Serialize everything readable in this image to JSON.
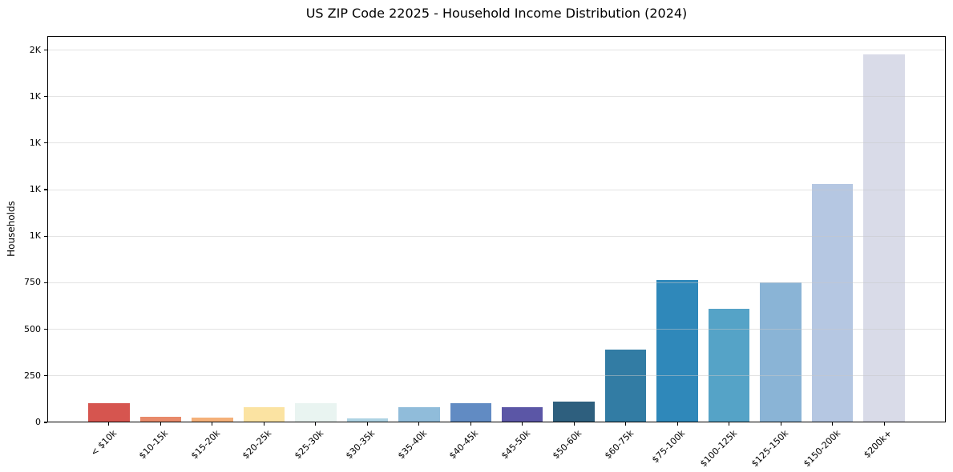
{
  "page": {
    "background": "#ffffff",
    "text_color": "#000000"
  },
  "chart_data": {
    "type": "bar",
    "title": "US ZIP Code 22025 - Household Income Distribution (2024)",
    "xlabel": "",
    "ylabel": "Households",
    "categories": [
      "< $10k",
      "$10-15k",
      "$15-20k",
      "$20-25k",
      "$25-30k",
      "$30-35k",
      "$35-40k",
      "$40-45k",
      "$45-50k",
      "$50-60k",
      "$60-75k",
      "$75-100k",
      "$100-125k",
      "$125-150k",
      "$150-200k",
      "$200k+"
    ],
    "values": [
      105,
      30,
      25,
      80,
      105,
      20,
      80,
      105,
      80,
      110,
      390,
      765,
      610,
      750,
      1280,
      1975
    ],
    "bar_colors": [
      "#d6554f",
      "#e88a6a",
      "#f4b079",
      "#fbe3a2",
      "#e9f4f1",
      "#aed3e3",
      "#90bcda",
      "#618bc3",
      "#5b56a6",
      "#2e5f7e",
      "#327ca4",
      "#2f88ba",
      "#55a3c7",
      "#8ab4d6",
      "#b5c7e2",
      "#d9dbe8"
    ],
    "ylim": [
      0,
      2075
    ],
    "yticks": [
      {
        "value": 0,
        "label": "0"
      },
      {
        "value": 250,
        "label": "250"
      },
      {
        "value": 500,
        "label": "500"
      },
      {
        "value": 750,
        "label": "750"
      },
      {
        "value": 1000,
        "label": "1K"
      },
      {
        "value": 1250,
        "label": "1K"
      },
      {
        "value": 1500,
        "label": "1K"
      },
      {
        "value": 1750,
        "label": "1K"
      },
      {
        "value": 2000,
        "label": "2K"
      }
    ],
    "grid": "horizontal",
    "gridline_color": "#ececec",
    "legend": false,
    "x_tick_rotation_deg": 45,
    "axis_color": "#000000"
  }
}
